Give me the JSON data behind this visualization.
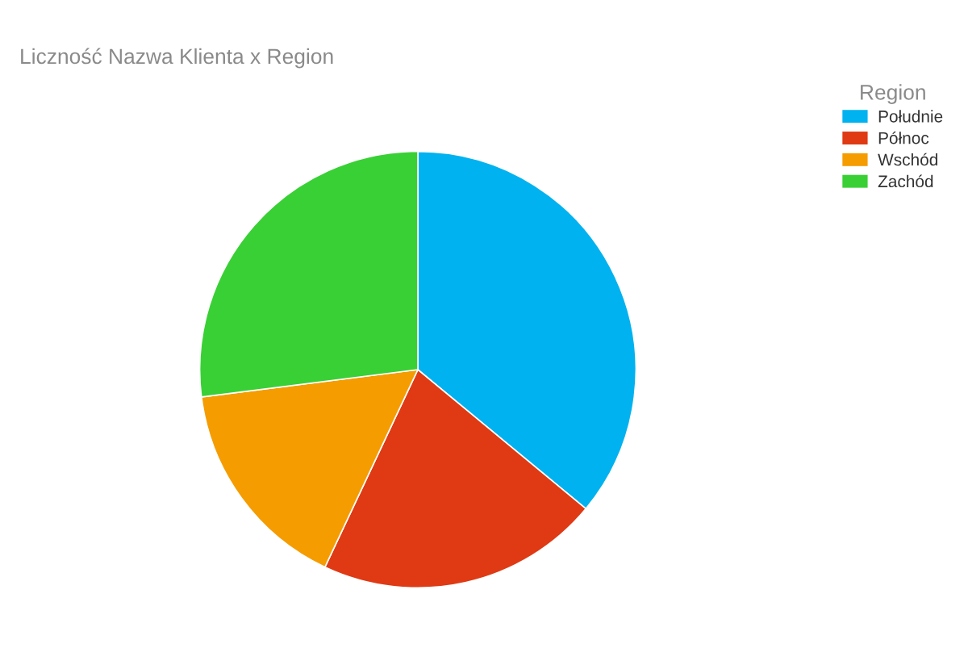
{
  "chart_data": {
    "type": "pie",
    "title": "Liczność Nazwa Klienta x Region",
    "legend_title": "Region",
    "categories": [
      "Południe",
      "Północ",
      "Wschód",
      "Zachód"
    ],
    "values": [
      36,
      21,
      16,
      27
    ],
    "colors": [
      "#00b2ef",
      "#df3a14",
      "#f59c00",
      "#39d035"
    ],
    "legend": "top right"
  }
}
